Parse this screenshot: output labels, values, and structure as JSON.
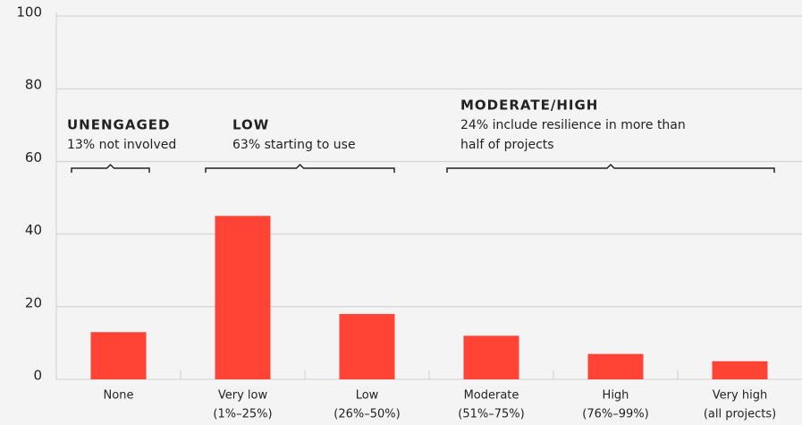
{
  "chart_data": {
    "type": "bar",
    "categories": [
      [
        "None"
      ],
      [
        "Very low",
        "(1%–25%)"
      ],
      [
        "Low",
        "(26%–50%)"
      ],
      [
        "Moderate",
        "(51%–75%)"
      ],
      [
        "High",
        "(76%–99%)"
      ],
      [
        "Very high",
        "(all projects)"
      ]
    ],
    "values": [
      13,
      45,
      18,
      12,
      7,
      5
    ],
    "color": "#ff4436",
    "ylim": [
      0,
      100
    ],
    "yticks": [
      0,
      20,
      40,
      60,
      80,
      100
    ],
    "grid": true,
    "annotations": [
      {
        "title": "UNENGAGED",
        "text": [
          "13% not involved"
        ]
      },
      {
        "title": "LOW",
        "text": [
          "63% starting to use"
        ]
      },
      {
        "title": "MODERATE/HIGH",
        "text": [
          "24% include resilience in more than",
          "half of projects"
        ]
      }
    ]
  }
}
